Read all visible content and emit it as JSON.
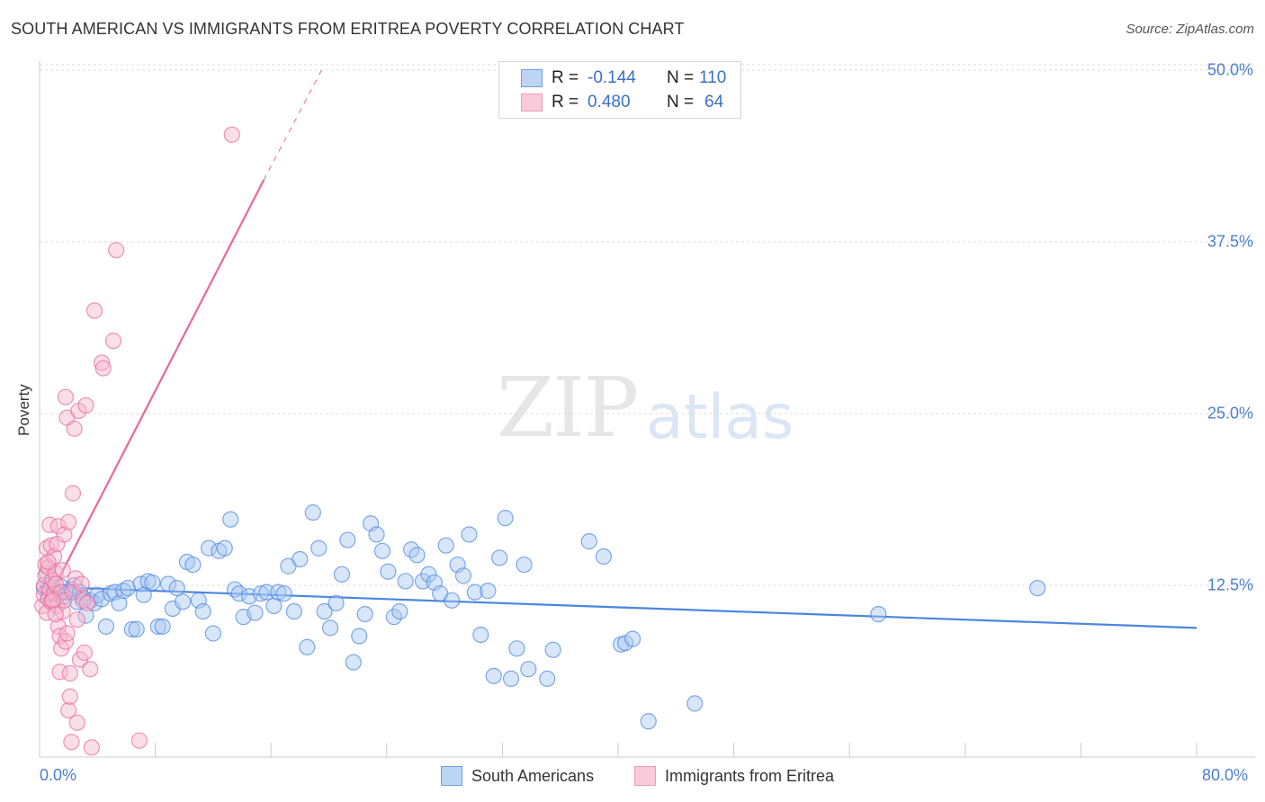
{
  "title": "SOUTH AMERICAN VS IMMIGRANTS FROM ERITREA POVERTY CORRELATION CHART",
  "source": "Source: ZipAtlas.com",
  "legend": {
    "series1": {
      "r_label": "R =",
      "r_value": "-0.144",
      "n_label": "N =",
      "n_value": "110"
    },
    "series2": {
      "r_label": "R =",
      "r_value": "0.480",
      "n_label": "N =",
      "n_value": "64"
    }
  },
  "bottom_legend": {
    "series1": "South Americans",
    "series2": "Immigrants from Eritrea"
  },
  "watermark": {
    "zip": "ZIP",
    "atlas": "atlas"
  },
  "colors": {
    "blue": "#4a86e0",
    "blue_fill": "#a9c8f2",
    "pink": "#e8679a",
    "pink_fill": "#f6b7cc",
    "grid": "#dcdcdc",
    "axis_text": "#4a7fd1"
  },
  "chart_data": {
    "type": "scatter",
    "title": "SOUTH AMERICAN VS IMMIGRANTS FROM ERITREA POVERTY CORRELATION CHART",
    "xlabel": "",
    "ylabel": "Poverty",
    "xlim": [
      0,
      80
    ],
    "ylim": [
      0,
      50
    ],
    "x_tick_labels": [
      "0.0%",
      "80.0%"
    ],
    "y_ticks": [
      12.5,
      25.0,
      37.5,
      50.0
    ],
    "y_tick_labels": [
      "12.5%",
      "25.0%",
      "37.5%",
      "50.0%"
    ],
    "grid": true,
    "legend_position": "top-center",
    "series": [
      {
        "name": "South Americans",
        "color": "#4a86e0",
        "r": -0.144,
        "n": 110,
        "trend": {
          "x": [
            0,
            80
          ],
          "y": [
            12.4,
            9.4
          ]
        },
        "points": [
          [
            0.3,
            12.3
          ],
          [
            0.5,
            13.4
          ],
          [
            0.6,
            11.9
          ],
          [
            0.8,
            12.6
          ],
          [
            1.0,
            12.1
          ],
          [
            1.1,
            11.5
          ],
          [
            1.3,
            11.8
          ],
          [
            1.5,
            12.4
          ],
          [
            1.7,
            11.7
          ],
          [
            1.9,
            12.0
          ],
          [
            2.2,
            12.2
          ],
          [
            2.4,
            12.5
          ],
          [
            2.6,
            11.3
          ],
          [
            2.8,
            12.0
          ],
          [
            3.0,
            11.6
          ],
          [
            3.2,
            10.3
          ],
          [
            3.5,
            11.4
          ],
          [
            3.8,
            11.2
          ],
          [
            4.0,
            11.8
          ],
          [
            4.3,
            11.5
          ],
          [
            4.6,
            9.5
          ],
          [
            4.9,
            11.9
          ],
          [
            5.2,
            12.0
          ],
          [
            5.5,
            11.2
          ],
          [
            5.8,
            12.1
          ],
          [
            6.1,
            12.3
          ],
          [
            6.4,
            9.3
          ],
          [
            6.7,
            9.3
          ],
          [
            7.0,
            12.6
          ],
          [
            7.2,
            11.8
          ],
          [
            7.5,
            12.8
          ],
          [
            7.8,
            12.7
          ],
          [
            8.2,
            9.5
          ],
          [
            8.5,
            9.5
          ],
          [
            8.9,
            12.6
          ],
          [
            9.2,
            10.8
          ],
          [
            9.5,
            12.3
          ],
          [
            9.9,
            11.3
          ],
          [
            10.2,
            14.2
          ],
          [
            10.6,
            14.0
          ],
          [
            11.0,
            11.4
          ],
          [
            11.3,
            10.6
          ],
          [
            11.7,
            15.2
          ],
          [
            12.0,
            9.0
          ],
          [
            12.4,
            15.0
          ],
          [
            12.8,
            15.2
          ],
          [
            13.2,
            17.3
          ],
          [
            13.5,
            12.2
          ],
          [
            13.8,
            11.9
          ],
          [
            14.1,
            10.2
          ],
          [
            14.5,
            11.7
          ],
          [
            14.9,
            10.5
          ],
          [
            15.3,
            11.9
          ],
          [
            15.7,
            12.0
          ],
          [
            16.2,
            11.0
          ],
          [
            16.5,
            12.0
          ],
          [
            16.9,
            11.9
          ],
          [
            17.2,
            13.9
          ],
          [
            17.6,
            10.6
          ],
          [
            18.0,
            14.4
          ],
          [
            18.5,
            8.0
          ],
          [
            18.9,
            17.8
          ],
          [
            19.3,
            15.2
          ],
          [
            19.7,
            10.6
          ],
          [
            20.1,
            9.4
          ],
          [
            20.5,
            11.2
          ],
          [
            20.9,
            13.3
          ],
          [
            21.3,
            15.8
          ],
          [
            21.7,
            6.9
          ],
          [
            22.1,
            8.8
          ],
          [
            22.5,
            10.4
          ],
          [
            22.9,
            17.0
          ],
          [
            23.3,
            16.2
          ],
          [
            23.7,
            15.0
          ],
          [
            24.1,
            13.5
          ],
          [
            24.5,
            10.2
          ],
          [
            24.9,
            10.6
          ],
          [
            25.3,
            12.8
          ],
          [
            25.7,
            15.1
          ],
          [
            26.1,
            14.7
          ],
          [
            26.5,
            12.8
          ],
          [
            26.9,
            13.3
          ],
          [
            27.3,
            12.7
          ],
          [
            27.7,
            11.9
          ],
          [
            28.1,
            15.4
          ],
          [
            28.5,
            11.4
          ],
          [
            28.9,
            14.0
          ],
          [
            29.3,
            13.2
          ],
          [
            29.7,
            16.2
          ],
          [
            30.1,
            12.0
          ],
          [
            30.5,
            8.9
          ],
          [
            31.0,
            12.1
          ],
          [
            31.4,
            5.9
          ],
          [
            31.8,
            14.5
          ],
          [
            32.2,
            17.4
          ],
          [
            32.6,
            5.7
          ],
          [
            33.0,
            7.9
          ],
          [
            33.5,
            14.0
          ],
          [
            33.8,
            6.4
          ],
          [
            35.1,
            5.7
          ],
          [
            35.5,
            7.8
          ],
          [
            38.0,
            15.7
          ],
          [
            39.0,
            14.6
          ],
          [
            40.2,
            8.2
          ],
          [
            40.5,
            8.3
          ],
          [
            41.0,
            8.6
          ],
          [
            42.1,
            2.6
          ],
          [
            45.3,
            3.9
          ],
          [
            58.0,
            10.4
          ],
          [
            69.0,
            12.3
          ]
        ]
      },
      {
        "name": "Immigrants from Eritrea",
        "color": "#e8679a",
        "r": 0.48,
        "n": 64,
        "trend": {
          "x": [
            0.4,
            15.5
          ],
          "y": [
            11.1,
            42.0
          ]
        },
        "trend_dashed": {
          "x": [
            15.5,
            19.5
          ],
          "y": [
            42.0,
            50.0
          ]
        },
        "points": [
          [
            0.2,
            11.0
          ],
          [
            0.3,
            11.8
          ],
          [
            0.3,
            12.5
          ],
          [
            0.4,
            13.2
          ],
          [
            0.4,
            14.0
          ],
          [
            0.5,
            10.5
          ],
          [
            0.5,
            15.2
          ],
          [
            0.6,
            11.5
          ],
          [
            0.6,
            13.8
          ],
          [
            0.7,
            12.2
          ],
          [
            0.7,
            16.9
          ],
          [
            0.8,
            11.3
          ],
          [
            0.8,
            15.4
          ],
          [
            0.9,
            12.9
          ],
          [
            1.0,
            14.6
          ],
          [
            1.0,
            11.9
          ],
          [
            1.1,
            13.4
          ],
          [
            1.1,
            12.6
          ],
          [
            1.2,
            15.5
          ],
          [
            1.2,
            11.0
          ],
          [
            1.3,
            16.8
          ],
          [
            1.3,
            9.5
          ],
          [
            1.4,
            8.8
          ],
          [
            1.4,
            6.2
          ],
          [
            1.5,
            12.0
          ],
          [
            1.5,
            7.9
          ],
          [
            1.6,
            13.6
          ],
          [
            1.6,
            10.6
          ],
          [
            1.7,
            16.2
          ],
          [
            1.7,
            11.4
          ],
          [
            1.8,
            8.4
          ],
          [
            1.8,
            26.2
          ],
          [
            1.9,
            24.7
          ],
          [
            1.9,
            9.0
          ],
          [
            2.0,
            17.1
          ],
          [
            2.0,
            3.4
          ],
          [
            2.1,
            4.4
          ],
          [
            2.1,
            6.1
          ],
          [
            2.2,
            1.1
          ],
          [
            2.3,
            19.2
          ],
          [
            2.3,
            12.0
          ],
          [
            2.4,
            23.9
          ],
          [
            2.5,
            13.0
          ],
          [
            2.6,
            2.5
          ],
          [
            2.6,
            10.0
          ],
          [
            2.7,
            25.2
          ],
          [
            2.8,
            7.1
          ],
          [
            2.9,
            12.6
          ],
          [
            3.0,
            11.4
          ],
          [
            3.1,
            7.6
          ],
          [
            3.2,
            25.6
          ],
          [
            3.3,
            11.2
          ],
          [
            3.5,
            6.4
          ],
          [
            3.6,
            0.7
          ],
          [
            3.8,
            32.5
          ],
          [
            4.3,
            28.7
          ],
          [
            4.4,
            28.3
          ],
          [
            5.1,
            30.3
          ],
          [
            5.3,
            36.9
          ],
          [
            6.9,
            1.2
          ],
          [
            13.3,
            45.3
          ],
          [
            0.9,
            11.4
          ],
          [
            1.1,
            10.4
          ],
          [
            0.6,
            14.2
          ]
        ]
      }
    ]
  }
}
